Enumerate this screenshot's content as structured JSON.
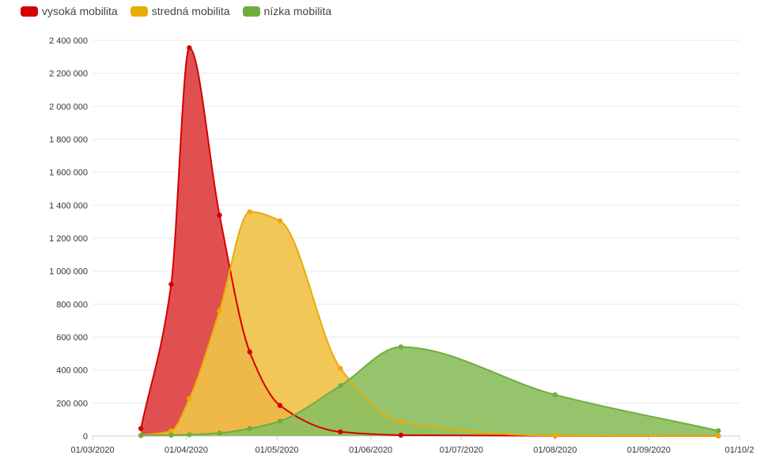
{
  "legend": [
    {
      "label": "vysoká mobilita",
      "color": "#d40000"
    },
    {
      "label": "stredná mobilita",
      "color": "#e8ac06"
    },
    {
      "label": "nízka mobilita",
      "color": "#70ad3e"
    }
  ],
  "chart_data": {
    "type": "area",
    "title": "",
    "xlabel": "",
    "ylabel": "",
    "ylim": [
      0,
      2400000
    ],
    "xlim": [
      "2020-03-01",
      "2020-10-01"
    ],
    "yticks": [
      0,
      200000,
      400000,
      600000,
      800000,
      1000000,
      1200000,
      1400000,
      1600000,
      1800000,
      2000000,
      2200000,
      2400000
    ],
    "ytick_labels": [
      "0",
      "200 000",
      "400 000",
      "600 000",
      "800 000",
      "1 000 000",
      "1 200 000",
      "1 400 000",
      "1 600 000",
      "1 800 000",
      "2 000 000",
      "2 200 000",
      "2 400 000"
    ],
    "xticks": [
      "2020-03-01",
      "2020-04-01",
      "2020-05-01",
      "2020-06-01",
      "2020-07-01",
      "2020-08-01",
      "2020-09-01",
      "2020-10-01"
    ],
    "xtick_labels": [
      "01/03/2020",
      "01/04/2020",
      "01/05/2020",
      "01/06/2020",
      "01/07/2020",
      "01/08/2020",
      "01/09/2020",
      "01/10/2"
    ],
    "grid": true,
    "legend_position": "top-left",
    "series": [
      {
        "name": "vysoká mobilita",
        "color": "#d40000",
        "fill": "#de4141",
        "points": [
          [
            "2020-03-17",
            45000
          ],
          [
            "2020-03-27",
            920000
          ],
          [
            "2020-04-02",
            2355000
          ],
          [
            "2020-04-12",
            1340000
          ],
          [
            "2020-04-22",
            510000
          ],
          [
            "2020-05-02",
            185000
          ],
          [
            "2020-05-22",
            25000
          ],
          [
            "2020-06-11",
            5000
          ],
          [
            "2020-08-01",
            1000
          ],
          [
            "2020-09-24",
            500
          ]
        ]
      },
      {
        "name": "stredná mobilita",
        "color": "#e8ac06",
        "fill": "#f0c24a",
        "points": [
          [
            "2020-03-17",
            3000
          ],
          [
            "2020-03-27",
            30000
          ],
          [
            "2020-04-02",
            225000
          ],
          [
            "2020-04-12",
            760000
          ],
          [
            "2020-04-22",
            1360000
          ],
          [
            "2020-05-02",
            1305000
          ],
          [
            "2020-05-22",
            410000
          ],
          [
            "2020-06-11",
            85000
          ],
          [
            "2020-08-01",
            3000
          ],
          [
            "2020-09-24",
            1000
          ]
        ]
      },
      {
        "name": "nízka mobilita",
        "color": "#70ad3e",
        "fill": "#8dbf5f",
        "points": [
          [
            "2020-03-17",
            3000
          ],
          [
            "2020-03-27",
            5000
          ],
          [
            "2020-04-02",
            8000
          ],
          [
            "2020-04-12",
            18000
          ],
          [
            "2020-04-22",
            45000
          ],
          [
            "2020-05-02",
            90000
          ],
          [
            "2020-05-22",
            305000
          ],
          [
            "2020-06-11",
            540000
          ],
          [
            "2020-08-01",
            250000
          ],
          [
            "2020-09-24",
            32000
          ]
        ]
      }
    ]
  }
}
